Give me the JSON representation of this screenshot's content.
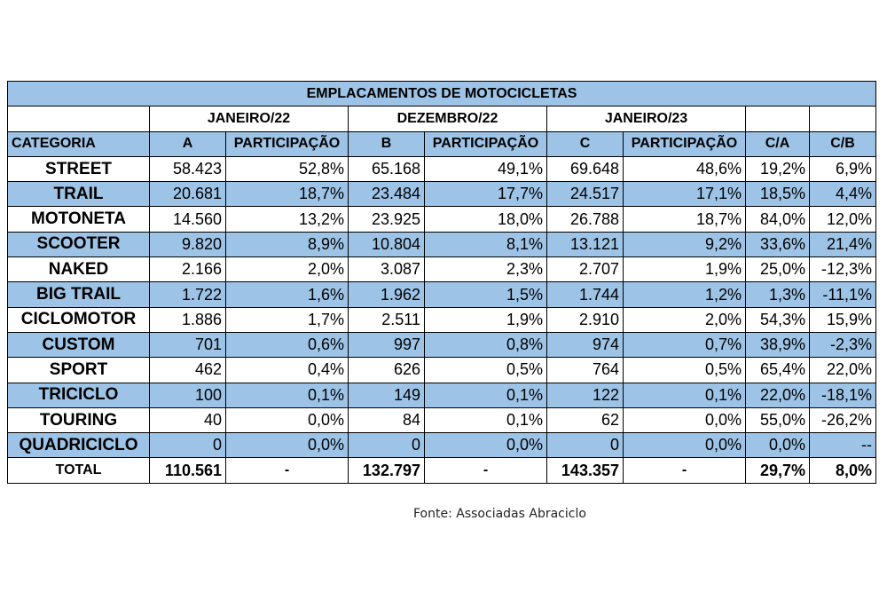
{
  "title": "EMPLACAMENTOS DE MOTOCICLETAS",
  "periods": [
    "JANEIRO/22",
    "DEZEMBRO/22",
    "JANEIRO/23"
  ],
  "headers": [
    "CATEGORIA",
    "A",
    "PARTICIPAÇÃO",
    "B",
    "PARTICIPAÇÃO",
    "C",
    "PARTICIPAÇÃO",
    "C/A",
    "C/B"
  ],
  "rows": [
    {
      "cat": "STREET",
      "a": "58.423",
      "pa": "52,8%",
      "b": "65.168",
      "pb": "49,1%",
      "c": "69.648",
      "pc": "48,6%",
      "ca": "19,2%",
      "cb": "6,9%"
    },
    {
      "cat": "TRAIL",
      "a": "20.681",
      "pa": "18,7%",
      "b": "23.484",
      "pb": "17,7%",
      "c": "24.517",
      "pc": "17,1%",
      "ca": "18,5%",
      "cb": "4,4%"
    },
    {
      "cat": "MOTONETA",
      "a": "14.560",
      "pa": "13,2%",
      "b": "23.925",
      "pb": "18,0%",
      "c": "26.788",
      "pc": "18,7%",
      "ca": "84,0%",
      "cb": "12,0%"
    },
    {
      "cat": "SCOOTER",
      "a": "9.820",
      "pa": "8,9%",
      "b": "10.804",
      "pb": "8,1%",
      "c": "13.121",
      "pc": "9,2%",
      "ca": "33,6%",
      "cb": "21,4%"
    },
    {
      "cat": "NAKED",
      "a": "2.166",
      "pa": "2,0%",
      "b": "3.087",
      "pb": "2,3%",
      "c": "2.707",
      "pc": "1,9%",
      "ca": "25,0%",
      "cb": "-12,3%"
    },
    {
      "cat": "BIG TRAIL",
      "a": "1.722",
      "pa": "1,6%",
      "b": "1.962",
      "pb": "1,5%",
      "c": "1.744",
      "pc": "1,2%",
      "ca": "1,3%",
      "cb": "-11,1%"
    },
    {
      "cat": "CICLOMOTOR",
      "a": "1.886",
      "pa": "1,7%",
      "b": "2.511",
      "pb": "1,9%",
      "c": "2.910",
      "pc": "2,0%",
      "ca": "54,3%",
      "cb": "15,9%"
    },
    {
      "cat": "CUSTOM",
      "a": "701",
      "pa": "0,6%",
      "b": "997",
      "pb": "0,8%",
      "c": "974",
      "pc": "0,7%",
      "ca": "38,9%",
      "cb": "-2,3%"
    },
    {
      "cat": "SPORT",
      "a": "462",
      "pa": "0,4%",
      "b": "626",
      "pb": "0,5%",
      "c": "764",
      "pc": "0,5%",
      "ca": "65,4%",
      "cb": "22,0%"
    },
    {
      "cat": "TRICICLO",
      "a": "100",
      "pa": "0,1%",
      "b": "149",
      "pb": "0,1%",
      "c": "122",
      "pc": "0,1%",
      "ca": "22,0%",
      "cb": "-18,1%"
    },
    {
      "cat": "TOURING",
      "a": "40",
      "pa": "0,0%",
      "b": "84",
      "pb": "0,1%",
      "c": "62",
      "pc": "0,0%",
      "ca": "55,0%",
      "cb": "-26,2%"
    },
    {
      "cat": "QUADRICICLO",
      "a": "0",
      "pa": "0,0%",
      "b": "0",
      "pb": "0,0%",
      "c": "0",
      "pc": "0,0%",
      "ca": "0,0%",
      "cb": "--"
    }
  ],
  "total": {
    "label": "TOTAL",
    "a": "110.561",
    "pa": "-",
    "b": "132.797",
    "pb": "-",
    "c": "143.357",
    "pc": "-",
    "ca": "29,7%",
    "cb": "8,0%"
  },
  "source": "Fonte: Associadas Abraciclo",
  "colors": {
    "header_blue": "#9dc3e6",
    "border": "#000000"
  }
}
